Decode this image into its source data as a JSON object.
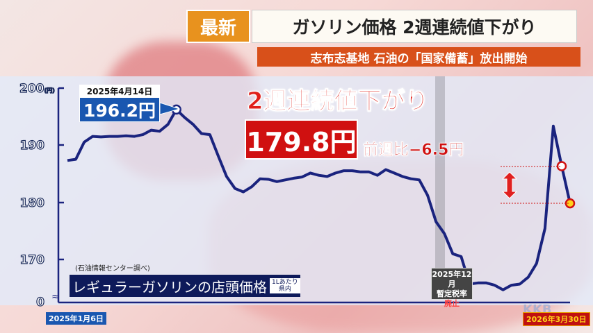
{
  "header": {
    "badge": "最新",
    "title": "ガソリン価格 2週連続値下がり",
    "subtitle": "志布志基地 石油の「国家備蓄」放出開始"
  },
  "annotations": {
    "headline": "2週連続値下がり",
    "latest_price": "179.8円",
    "weekly_change": "前週比−6.5円",
    "peak_date": "2025年4月14日",
    "peak_value": "196.2円",
    "event_date": "2025年12月",
    "event_line1": "暫定税率",
    "event_line2": "廃止",
    "source": "(石油情報センター調べ)",
    "series_label": "レギュラーガソリンの店頭価格",
    "unit_line1": "1Lあたり",
    "unit_line2": "県内",
    "watermark": "KKB"
  },
  "colors": {
    "line": "#1a237e",
    "accent_red": "#d01010",
    "badge_orange": "#e8921e",
    "peak_blue": "#1a57b0"
  },
  "chart_data": {
    "type": "line",
    "title": "レギュラーガソリンの店頭価格",
    "x_start": "2025年1月6日",
    "x_end": "2026年3月30日",
    "yticks": [
      "200",
      "190",
      "180",
      "170",
      "0"
    ],
    "yunit": "(円)",
    "ylim": [
      165,
      200
    ],
    "axis_break": true,
    "grid": false,
    "series": [
      {
        "name": "レギュラーガソリンの店頭価格",
        "values": [
          187.3,
          187.5,
          190.5,
          191.5,
          191.4,
          191.5,
          191.5,
          191.6,
          191.5,
          191.8,
          192.6,
          192.4,
          193.6,
          196.2,
          194.8,
          193.6,
          192.0,
          191.8,
          188.1,
          184.5,
          182.4,
          181.8,
          182.7,
          184.1,
          184.0,
          183.6,
          183.9,
          184.2,
          184.4,
          185.1,
          184.7,
          184.5,
          185.1,
          185.5,
          185.5,
          185.3,
          185.3,
          184.7,
          185.7,
          185.1,
          184.5,
          184.1,
          183.9,
          181.2,
          176.6,
          174.5,
          171.0,
          170.5,
          165.7,
          165.9,
          165.9,
          165.5,
          164.7,
          165.5,
          165.7,
          166.9,
          169.3,
          175.4,
          193.3,
          186.3,
          179.8
        ]
      }
    ]
  }
}
